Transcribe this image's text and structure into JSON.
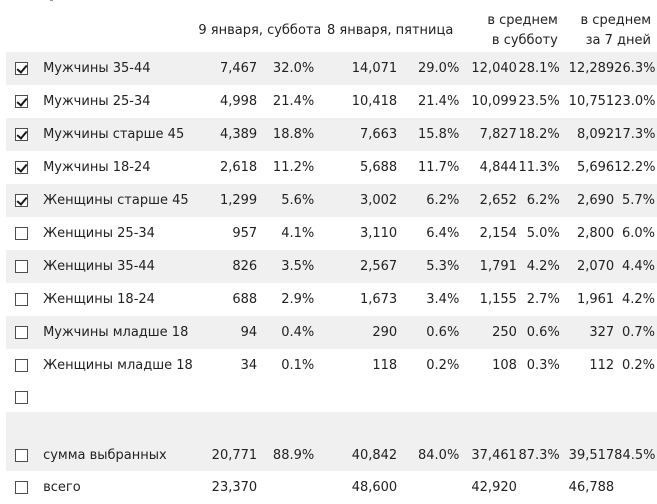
{
  "columns": {
    "day1": "9 января, суббота",
    "day2": "8 января, пятница",
    "avg_sat_line1": "в среднем",
    "avg_sat_line2": "в субботу",
    "avg_7_line1": "в среднем",
    "avg_7_line2": "за 7 дней"
  },
  "rows": [
    {
      "label": "Мужчины 35-44",
      "checked": true,
      "d1": "7,467",
      "d1p": "32.0%",
      "d2": "14,071",
      "d2p": "29.0%",
      "a1": "12,040",
      "a1p": "28.1%",
      "a2": "12,289",
      "a2p": "26.3%"
    },
    {
      "label": "Мужчины 25-34",
      "checked": true,
      "d1": "4,998",
      "d1p": "21.4%",
      "d2": "10,418",
      "d2p": "21.4%",
      "a1": "10,099",
      "a1p": "23.5%",
      "a2": "10,751",
      "a2p": "23.0%"
    },
    {
      "label": "Мужчины старше 45",
      "checked": true,
      "d1": "4,389",
      "d1p": "18.8%",
      "d2": "7,663",
      "d2p": "15.8%",
      "a1": "7,827",
      "a1p": "18.2%",
      "a2": "8,092",
      "a2p": "17.3%"
    },
    {
      "label": "Мужчины 18-24",
      "checked": true,
      "d1": "2,618",
      "d1p": "11.2%",
      "d2": "5,688",
      "d2p": "11.7%",
      "a1": "4,844",
      "a1p": "11.3%",
      "a2": "5,696",
      "a2p": "12.2%"
    },
    {
      "label": "Женщины старше 45",
      "checked": true,
      "d1": "1,299",
      "d1p": "5.6%",
      "d2": "3,002",
      "d2p": "6.2%",
      "a1": "2,652",
      "a1p": "6.2%",
      "a2": "2,690",
      "a2p": "5.7%"
    },
    {
      "label": "Женщины 25-34",
      "checked": false,
      "d1": "957",
      "d1p": "4.1%",
      "d2": "3,110",
      "d2p": "6.4%",
      "a1": "2,154",
      "a1p": "5.0%",
      "a2": "2,800",
      "a2p": "6.0%"
    },
    {
      "label": "Женщины 35-44",
      "checked": false,
      "d1": "826",
      "d1p": "3.5%",
      "d2": "2,567",
      "d2p": "5.3%",
      "a1": "1,791",
      "a1p": "4.2%",
      "a2": "2,070",
      "a2p": "4.4%"
    },
    {
      "label": "Женщины 18-24",
      "checked": false,
      "d1": "688",
      "d1p": "2.9%",
      "d2": "1,673",
      "d2p": "3.4%",
      "a1": "1,155",
      "a1p": "2.7%",
      "a2": "1,961",
      "a2p": "4.2%"
    },
    {
      "label": "Мужчины младше 18",
      "checked": false,
      "d1": "94",
      "d1p": "0.4%",
      "d2": "290",
      "d2p": "0.6%",
      "a1": "250",
      "a1p": "0.6%",
      "a2": "327",
      "a2p": "0.7%"
    },
    {
      "label": "Женщины младше 18",
      "checked": false,
      "d1": "34",
      "d1p": "0.1%",
      "d2": "118",
      "d2p": "0.2%",
      "a1": "108",
      "a1p": "0.3%",
      "a2": "112",
      "a2p": "0.2%"
    }
  ],
  "sum_selected": {
    "label": "сумма выбранных",
    "checked": false,
    "d1": "20,771",
    "d1p": "88.9%",
    "d2": "40,842",
    "d2p": "84.0%",
    "a1": "37,461",
    "a1p": "87.3%",
    "a2": "39,517",
    "a2p": "84.5%"
  },
  "total": {
    "label": "всего",
    "checked": false,
    "d1": "23,370",
    "d2": "48,600",
    "a1": "42,920",
    "a2": "46,788"
  }
}
